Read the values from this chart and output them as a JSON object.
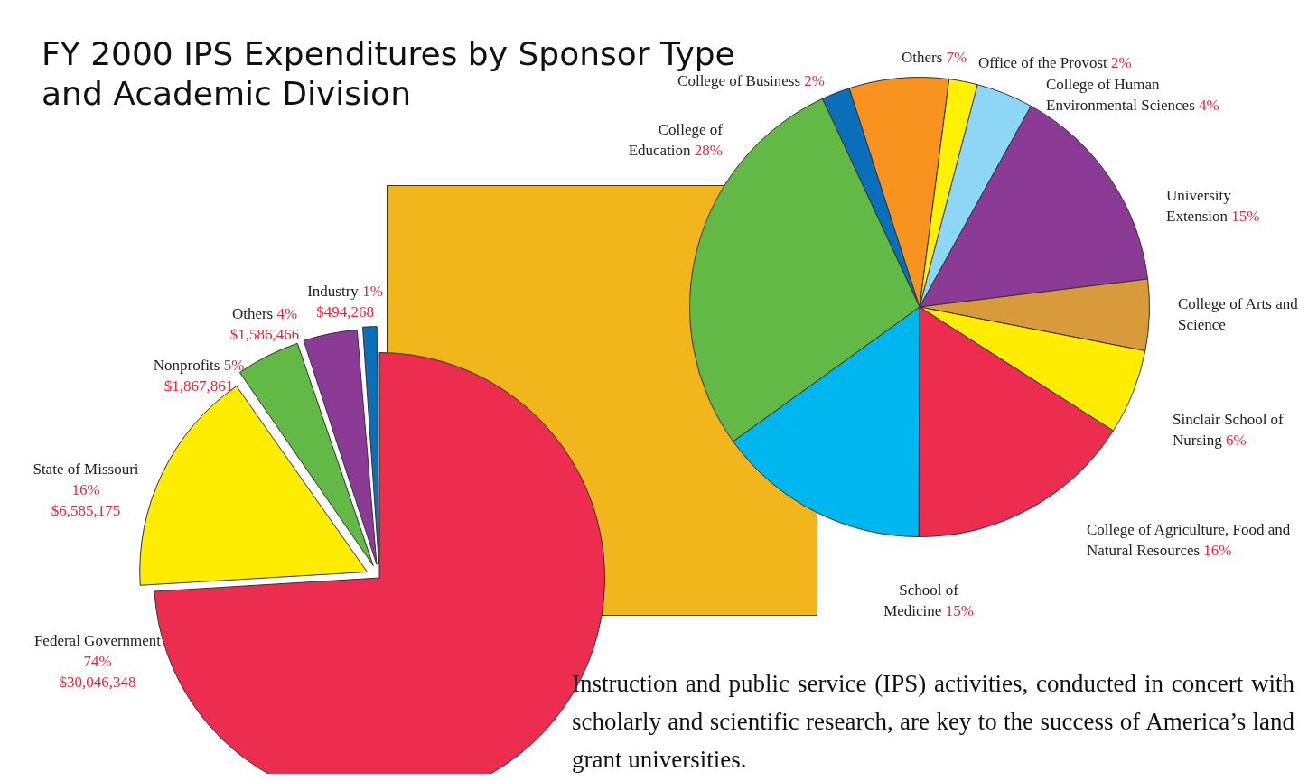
{
  "chart_data": [
    {
      "type": "pie",
      "title": "FY 2000 IPS Expenditures by Sponsor Type and Academic Division",
      "categories": [
        "Federal Government",
        "State of Missouri",
        "Nonprofits",
        "Others",
        "Industry"
      ],
      "values": [
        30046348,
        6585175,
        1867861,
        1586466,
        494268
      ],
      "colors": [
        "#ec2d4f",
        "#ffed00",
        "#62b946",
        "#8b3a96",
        "#0a6fba"
      ],
      "value_labels": [
        "74%\n$30,046,348",
        "16%\n$6,585,175",
        "5%\n$1,867,861",
        "4%\n$1,586,466",
        "1%\n$494,268"
      ]
    },
    {
      "type": "pie",
      "categories": [
        "College of Business",
        "Others",
        "Office of the Provost",
        "College of Human Environmental Sciences",
        "University Extension",
        "College of Arts and Science",
        "Sinclair School of Nursing",
        "College of Agriculture, Food and Natural Resources",
        "School of Medicine",
        "College of Education"
      ],
      "values": [
        2,
        7,
        2,
        4,
        15,
        5,
        6,
        16,
        15,
        28
      ],
      "colors": [
        "#0a6fba",
        "#f7931e",
        "#fff200",
        "#8dd6f5",
        "#8b3a96",
        "#d99a3c",
        "#ffed00",
        "#ec2d4f",
        "#00b6ef",
        "#62b946"
      ],
      "value_labels": [
        "2%",
        "7%",
        "2%",
        "4%",
        "15%",
        null,
        "6%",
        "16%",
        "15%",
        "28%"
      ],
      "annotations": [
        "Instruction and public service (IPS) activities, conducted in concert with scholarly and scientific research, are key to the success of America’s land grant universities."
      ]
    }
  ]
}
